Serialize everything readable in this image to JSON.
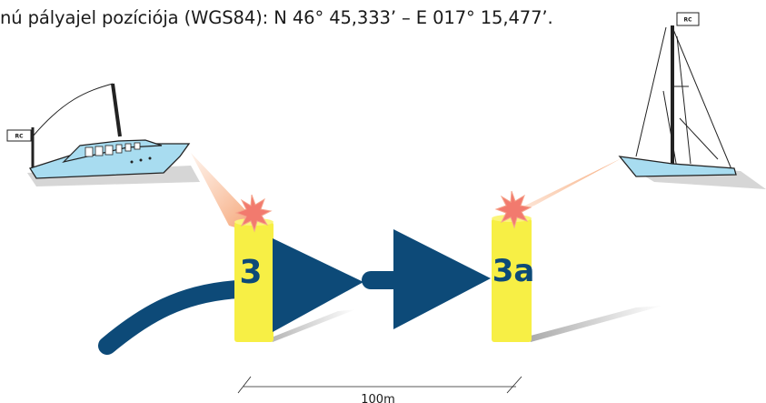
{
  "caption": "nú pályajel pozíciója (WGS84): N 46° 45,333’ – E 017° 15,477’.",
  "buoys": {
    "left_label": "3",
    "right_label": "3a"
  },
  "flags": {
    "motorboat": "RC",
    "sailboat": "RC"
  },
  "distance_label": "100m",
  "colors": {
    "hull": "#a8dcf0",
    "buoy": "#f7ef45",
    "arrow": "#0d4a78",
    "beam": "#f7a877",
    "star": "#f27a6e"
  }
}
